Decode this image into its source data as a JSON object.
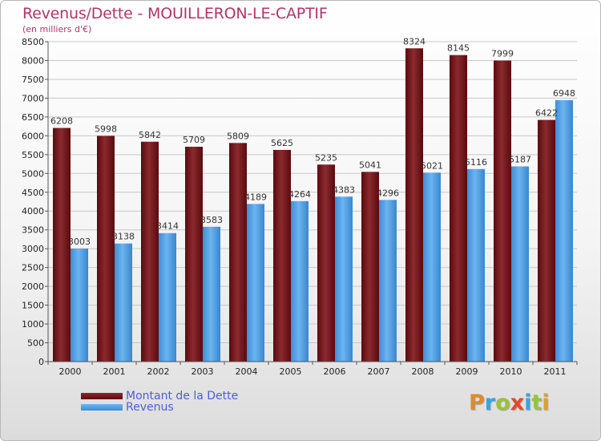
{
  "header": {
    "title": "Revenus/Dette - MOUILLERON-LE-CAPTIF",
    "subtitle": "(en milliers d'€)"
  },
  "legend": {
    "items": [
      {
        "label": "Montant de la Dette",
        "color": "#6b0f14"
      },
      {
        "label": "Revenus",
        "color": "#4aa0e6"
      }
    ]
  },
  "logo": {
    "text": "Proxiti"
  },
  "chart_data": {
    "type": "bar",
    "categories": [
      "2000",
      "2001",
      "2002",
      "2003",
      "2004",
      "2005",
      "2006",
      "2007",
      "2008",
      "2009",
      "2010",
      "2011"
    ],
    "series": [
      {
        "name": "Montant de la Dette",
        "color": "#7a1a1e",
        "values": [
          6208,
          5998,
          5842,
          5709,
          5809,
          5625,
          5235,
          5041,
          8324,
          8145,
          7999,
          6422
        ]
      },
      {
        "name": "Revenus",
        "color": "#4aa0e6",
        "values": [
          3003,
          3138,
          3414,
          3583,
          4189,
          4264,
          4383,
          4296,
          5021,
          5116,
          5187,
          6948
        ]
      }
    ],
    "ylim": [
      0,
      8500
    ],
    "yticks": [
      "0",
      "500",
      "1000",
      "1500",
      "2000",
      "2500",
      "3000",
      "3500",
      "4000",
      "4500",
      "5000",
      "5500",
      "6000",
      "6500",
      "7000",
      "7500",
      "8000",
      "8500"
    ],
    "grid": true,
    "legend_position": "bottom-left"
  }
}
